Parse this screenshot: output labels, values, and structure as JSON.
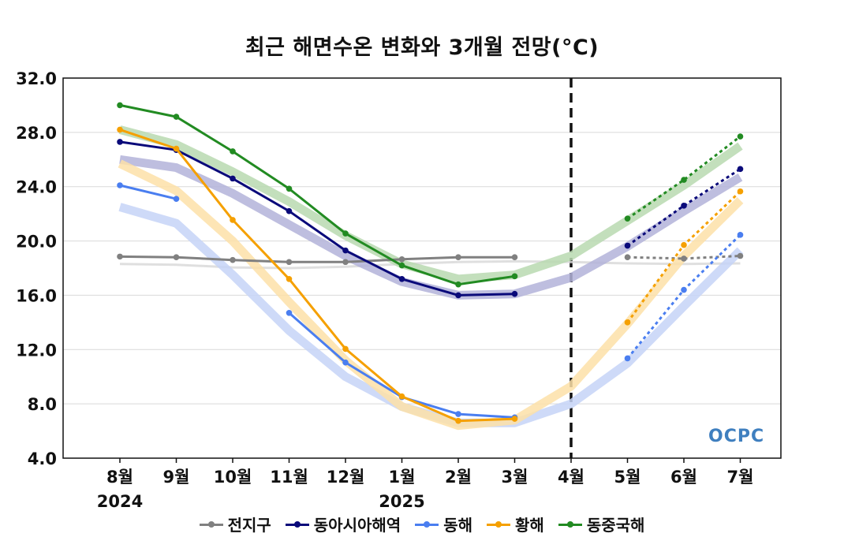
{
  "chart_data": {
    "type": "line",
    "title": "최근 해면수온 변화와 3개월 전망(°C)",
    "categories": [
      "8월",
      "9월",
      "10월",
      "11월",
      "12월",
      "1월",
      "2월",
      "3월",
      "4월",
      "5월",
      "6월",
      "7월"
    ],
    "year_labels": [
      {
        "category": "8월",
        "label": "2024"
      },
      {
        "category": "1월",
        "label": "2025"
      }
    ],
    "ylim": [
      4.0,
      32.0
    ],
    "yticks": [
      "4.0",
      "8.0",
      "12.0",
      "16.0",
      "20.0",
      "24.0",
      "28.0",
      "32.0"
    ],
    "forecast_divider_at": "4월",
    "grid": true,
    "legend_position": "bottom",
    "series": [
      {
        "name": "전지구",
        "color": "#808080",
        "climatology_color": "#d9d9d9",
        "observed": [
          18.85,
          18.8,
          18.6,
          18.45,
          18.45,
          18.65,
          18.8,
          18.8,
          null,
          null,
          null,
          null
        ],
        "forecast": [
          null,
          null,
          null,
          null,
          null,
          null,
          null,
          null,
          null,
          18.8,
          18.7,
          18.9
        ],
        "climatology": [
          18.3,
          18.25,
          18.05,
          18.0,
          18.1,
          18.3,
          18.45,
          18.5,
          18.45,
          18.35,
          18.3,
          18.35
        ]
      },
      {
        "name": "동아시아해역",
        "color": "#0a0a7a",
        "climatology_color": "#b3b3d9",
        "observed": [
          27.3,
          26.7,
          24.6,
          22.2,
          19.3,
          17.2,
          16.0,
          16.1,
          null,
          null,
          null,
          null
        ],
        "forecast": [
          null,
          null,
          null,
          null,
          null,
          null,
          null,
          null,
          null,
          19.65,
          22.6,
          25.3
        ],
        "climatology": [
          26.0,
          25.4,
          23.5,
          21.2,
          18.9,
          17.0,
          16.0,
          16.1,
          17.3,
          19.6,
          22.2,
          24.7
        ]
      },
      {
        "name": "동해",
        "color": "#4a7ef0",
        "climatology_color": "#c5d3f7",
        "observed": [
          24.1,
          23.1,
          null,
          14.7,
          11.05,
          8.5,
          7.25,
          7.0,
          null,
          null,
          null,
          null
        ],
        "forecast": [
          null,
          null,
          null,
          null,
          null,
          null,
          null,
          null,
          null,
          11.35,
          16.4,
          20.45
        ],
        "climatology": [
          22.5,
          21.3,
          17.5,
          13.4,
          10.0,
          7.8,
          6.6,
          6.6,
          8.0,
          11.0,
          15.2,
          19.3
        ]
      },
      {
        "name": "황해",
        "color": "#f5a000",
        "climatology_color": "#fde0a8",
        "observed": [
          28.2,
          26.8,
          21.55,
          17.2,
          12.05,
          8.55,
          6.75,
          6.9,
          null,
          null,
          null,
          null
        ],
        "forecast": [
          null,
          null,
          null,
          null,
          null,
          null,
          null,
          null,
          null,
          14.0,
          19.7,
          23.65
        ],
        "climatology": [
          25.7,
          23.7,
          20.0,
          15.5,
          11.2,
          7.8,
          6.4,
          6.8,
          9.3,
          13.9,
          18.9,
          23.0
        ]
      },
      {
        "name": "동중국해",
        "color": "#228b22",
        "climatology_color": "#b8d9b0",
        "observed": [
          30.0,
          29.15,
          26.6,
          23.85,
          20.55,
          18.2,
          16.8,
          17.4,
          null,
          null,
          null,
          null
        ],
        "forecast": [
          null,
          null,
          null,
          null,
          null,
          null,
          null,
          null,
          null,
          21.65,
          24.5,
          27.7
        ],
        "climatology": [
          28.2,
          27.1,
          25.1,
          22.9,
          20.4,
          18.3,
          17.2,
          17.5,
          18.9,
          21.5,
          24.1,
          27.0
        ]
      }
    ]
  },
  "logo": {
    "text": "OCPC"
  }
}
